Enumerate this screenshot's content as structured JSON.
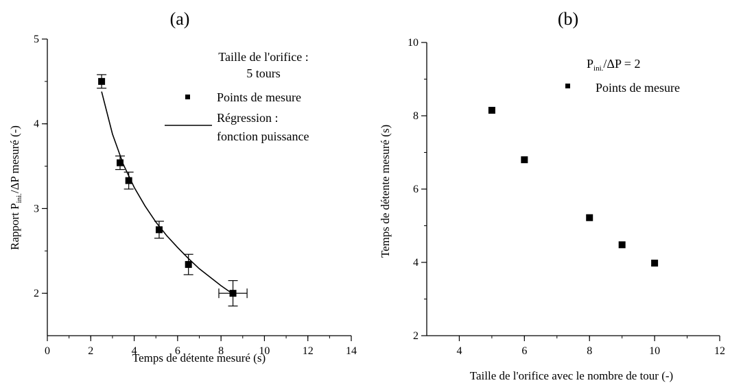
{
  "chart_data": [
    {
      "type": "scatter",
      "panel_label": "(a)",
      "xlabel": "Temps de détente mesuré (s)",
      "ylabel": {
        "prefix": "Rapport P",
        "subscript": "ini.",
        "suffix": "/ΔP  mesuré (-)"
      },
      "xlim": [
        0,
        14
      ],
      "ylim": [
        1.5,
        5
      ],
      "xticks": [
        "0",
        "2",
        "4",
        "6",
        "8",
        "10",
        "12",
        "14"
      ],
      "yticks": [
        "2",
        "3",
        "4",
        "5"
      ],
      "annotation": [
        "Taille de l'orifice :",
        "5 tours"
      ],
      "legend": {
        "points": "Points de mesure",
        "line": [
          "Régression :",
          "fonction puissance"
        ]
      },
      "series": [
        {
          "name": "Points de mesure",
          "kind": "points",
          "x": [
            2.5,
            3.35,
            3.75,
            5.15,
            6.5,
            8.55
          ],
          "y": [
            4.5,
            3.54,
            3.33,
            2.75,
            2.34,
            2.0
          ],
          "yerr": [
            0.08,
            0.08,
            0.1,
            0.1,
            0.12,
            0.15
          ],
          "xerr": [
            0,
            0,
            0,
            0,
            0,
            0.65
          ]
        },
        {
          "name": "Régression : fonction puissance",
          "kind": "line",
          "x": [
            2.5,
            3.0,
            3.5,
            4.0,
            4.5,
            5.0,
            5.5,
            6.0,
            6.5,
            7.0,
            7.5,
            8.0,
            8.5
          ],
          "y": [
            4.38,
            3.88,
            3.52,
            3.25,
            3.03,
            2.84,
            2.68,
            2.54,
            2.41,
            2.29,
            2.19,
            2.09,
            2.0
          ]
        }
      ]
    },
    {
      "type": "scatter",
      "panel_label": "(b)",
      "xlabel": "Taille de l'orifice avec le nombre de tour (-)",
      "ylabel": "Temps de détente mesuré (s)",
      "xlim": [
        3,
        12
      ],
      "ylim": [
        2,
        10
      ],
      "xticks": [
        "4",
        "6",
        "8",
        "10",
        "12"
      ],
      "yticks": [
        "2",
        "4",
        "6",
        "8",
        "10"
      ],
      "annotation": {
        "prefix": "P",
        "subscript": "ini.",
        "suffix": "/ΔP = 2"
      },
      "legend": {
        "points": "Points de mesure"
      },
      "series": [
        {
          "name": "Points de mesure",
          "kind": "points",
          "x": [
            5,
            6,
            8,
            9,
            10
          ],
          "y": [
            8.15,
            6.8,
            5.22,
            4.48,
            3.98
          ]
        }
      ]
    }
  ]
}
